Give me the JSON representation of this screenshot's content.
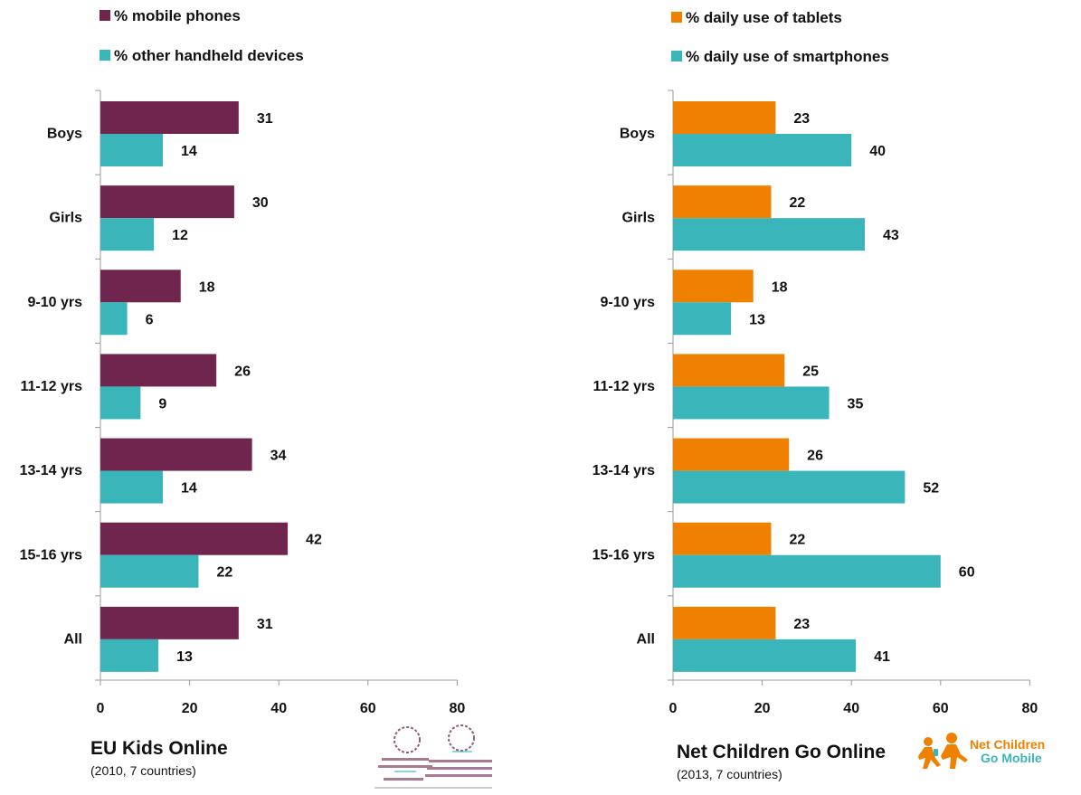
{
  "chart_data": [
    {
      "type": "bar",
      "orientation": "horizontal",
      "categories": [
        "Boys",
        "Girls",
        "9-10 yrs",
        "11-12 yrs",
        "13-14 yrs",
        "15-16 yrs",
        "All"
      ],
      "series": [
        {
          "name": "% mobile phones",
          "color": "#70254e",
          "values": [
            31,
            30,
            18,
            26,
            34,
            42,
            31
          ]
        },
        {
          "name": "% other handheld devices",
          "color": "#3ab5b9",
          "values": [
            14,
            12,
            6,
            9,
            14,
            22,
            13
          ]
        }
      ],
      "xlim": [
        0,
        80
      ],
      "xticks": [
        0,
        20,
        40,
        60,
        80
      ],
      "legend_position": "top",
      "caption_title": "EU Kids Online",
      "caption_subtitle": "(2010, 7 countries)"
    },
    {
      "type": "bar",
      "orientation": "horizontal",
      "categories": [
        "Boys",
        "Girls",
        "9-10 yrs",
        "11-12 yrs",
        "13-14 yrs",
        "15-16 yrs",
        "All"
      ],
      "series": [
        {
          "name": "% daily use of tablets",
          "color": "#f08000",
          "values": [
            23,
            22,
            18,
            25,
            26,
            22,
            23
          ]
        },
        {
          "name": "% daily use of smartphones",
          "color": "#3ab5b9",
          "values": [
            40,
            43,
            13,
            35,
            52,
            60,
            41
          ]
        }
      ],
      "xlim": [
        0,
        80
      ],
      "xticks": [
        0,
        20,
        40,
        60,
        80
      ],
      "legend_position": "top",
      "caption_title": "Net Children Go Online",
      "caption_subtitle": "(2013, 7 countries)"
    }
  ],
  "logos": {
    "left": {
      "name": "eu-kids-online-logo",
      "color": "#70254e"
    },
    "right": {
      "name": "net-children-go-mobile-logo",
      "text_line1": "Net Children",
      "text_line2": "Go Mobile",
      "color": "#f08000"
    }
  }
}
